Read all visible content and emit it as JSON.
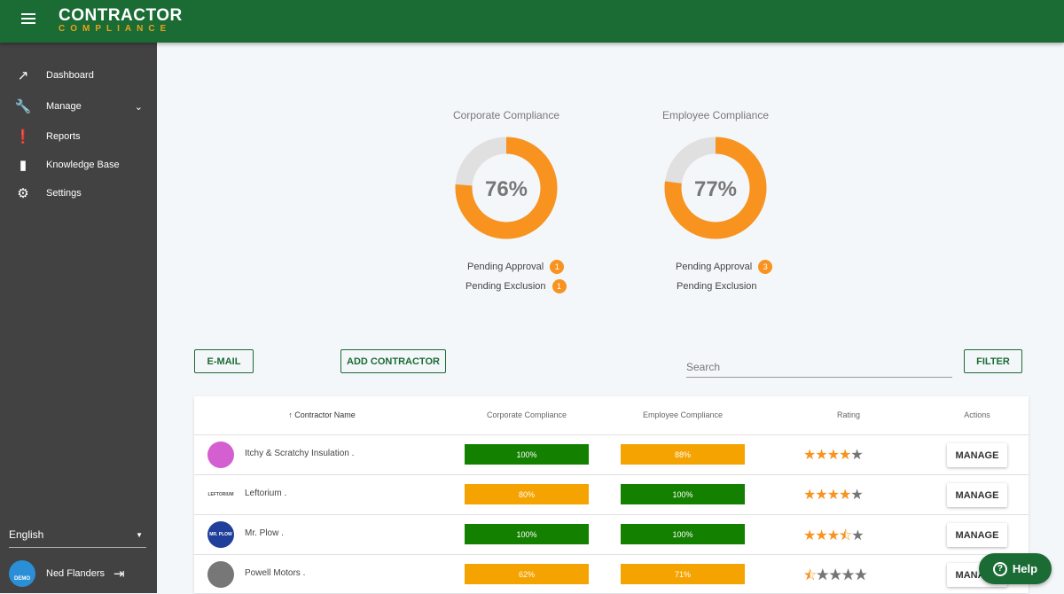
{
  "header": {
    "logo_top": "CONTRACTOR",
    "logo_bottom": "COMPLIANCE"
  },
  "sidebar": {
    "items": [
      {
        "label": "Dashboard",
        "icon": "trending-up-icon"
      },
      {
        "label": "Manage",
        "icon": "wrench-icon"
      },
      {
        "label": "Reports",
        "icon": "alert-icon"
      },
      {
        "label": "Knowledge Base",
        "icon": "book-icon"
      },
      {
        "label": "Settings",
        "icon": "gear-icon"
      }
    ],
    "language": "English",
    "user": "Ned Flanders",
    "avatar_text": "DEMO"
  },
  "gauges": [
    {
      "title": "Corporate Compliance",
      "value": 76,
      "label": "76%",
      "pending_approval": "Pending Approval",
      "approval_count": "1",
      "pending_exclusion": "Pending Exclusion",
      "exclusion_count": "1"
    },
    {
      "title": "Employee Compliance",
      "value": 77,
      "label": "77%",
      "pending_approval": "Pending Approval",
      "approval_count": "3",
      "pending_exclusion": "Pending Exclusion"
    }
  ],
  "toolbar": {
    "email": "E-MAIL",
    "add": "ADD CONTRACTOR",
    "search_placeholder": "Search",
    "filter": "FILTER"
  },
  "table": {
    "headers": [
      "↑ Contractor Name",
      "Corporate Compliance",
      "Employee Compliance",
      "Rating",
      "Actions"
    ],
    "rows": [
      {
        "name": "Itchy & Scratchy Insulation .",
        "corp": "100%",
        "emp": "88%",
        "rating": 4,
        "action": "MANAGE",
        "logo_color": "#d45fd0"
      },
      {
        "name": "Leftorium .",
        "corp": "80%",
        "emp": "100%",
        "rating": 4,
        "action": "MANAGE",
        "logo_color": "#ffffff",
        "logo_text": "LEFTORIUM"
      },
      {
        "name": "Mr. Plow .",
        "corp": "100%",
        "emp": "100%",
        "rating": 3.5,
        "action": "MANAGE",
        "logo_color": "#1f3f9a",
        "logo_text": "MR. PLOW"
      },
      {
        "name": "Powell Motors .",
        "corp": "62%",
        "emp": "71%",
        "rating": 0.5,
        "action": "MANAGE",
        "logo_color": "#777777"
      }
    ]
  },
  "colors": {
    "green": "#138000",
    "orange": "#f5a300",
    "star": "#f7931e",
    "star_off": "#757575"
  },
  "help": "Help"
}
